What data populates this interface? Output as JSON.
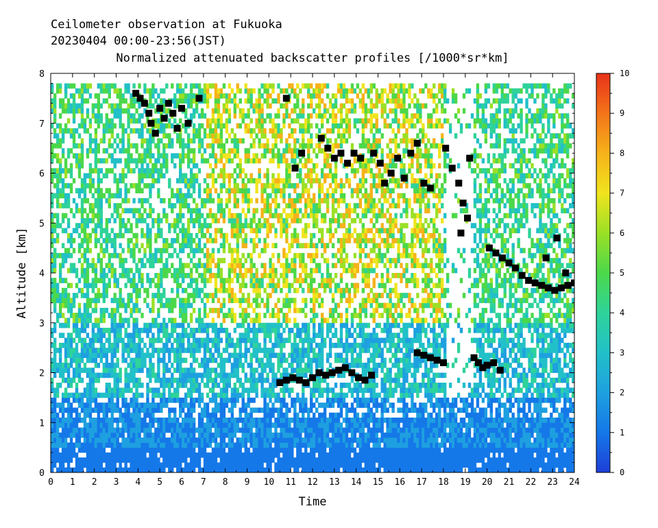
{
  "header": {
    "line1": "Ceilometer observation at Fukuoka",
    "line2": "20230404  00:00-23:56(JST)",
    "title": "Normalized attenuated backscatter profiles [/1000*sr*km]"
  },
  "chart_data": {
    "type": "heatmap",
    "title": "Normalized attenuated backscatter profiles [/1000*sr*km]",
    "xlabel": "Time",
    "ylabel": "Altitude [km]",
    "xlim": [
      0,
      24
    ],
    "ylim": [
      0,
      8
    ],
    "x_ticks": [
      "0",
      "1",
      "2",
      "3",
      "4",
      "5",
      "6",
      "7",
      "8",
      "9",
      "10",
      "11",
      "12",
      "13",
      "14",
      "15",
      "16",
      "17",
      "18",
      "19",
      "20",
      "21",
      "22",
      "23",
      "24"
    ],
    "y_ticks": [
      "0",
      "1",
      "2",
      "3",
      "4",
      "5",
      "6",
      "7",
      "8"
    ],
    "colorbar": {
      "range": [
        0,
        10
      ],
      "ticks": [
        "0",
        "1",
        "2",
        "3",
        "4",
        "5",
        "6",
        "7",
        "8",
        "9",
        "10"
      ],
      "colors": [
        "#1e3fd8",
        "#1578e8",
        "#1ea0e0",
        "#22c0c8",
        "#2ed39a",
        "#4cd84a",
        "#9be026",
        "#f0e41e",
        "#f6b21a",
        "#f4741a",
        "#e8321a"
      ]
    },
    "data_ceiling_km": 7.7,
    "cloud_base_color": "#000000",
    "cloud_base_points": [
      {
        "t": 3.9,
        "alt": 7.6
      },
      {
        "t": 4.1,
        "alt": 7.5
      },
      {
        "t": 4.3,
        "alt": 7.4
      },
      {
        "t": 4.5,
        "alt": 7.2
      },
      {
        "t": 4.6,
        "alt": 7.0
      },
      {
        "t": 4.8,
        "alt": 6.8
      },
      {
        "t": 5.0,
        "alt": 7.3
      },
      {
        "t": 5.2,
        "alt": 7.1
      },
      {
        "t": 5.4,
        "alt": 7.4
      },
      {
        "t": 5.6,
        "alt": 7.2
      },
      {
        "t": 5.8,
        "alt": 6.9
      },
      {
        "t": 6.0,
        "alt": 7.3
      },
      {
        "t": 6.3,
        "alt": 7.0
      },
      {
        "t": 6.8,
        "alt": 7.5
      },
      {
        "t": 10.8,
        "alt": 7.5
      },
      {
        "t": 11.2,
        "alt": 6.1
      },
      {
        "t": 11.5,
        "alt": 6.4
      },
      {
        "t": 12.4,
        "alt": 6.7
      },
      {
        "t": 12.7,
        "alt": 6.5
      },
      {
        "t": 13.0,
        "alt": 6.3
      },
      {
        "t": 13.3,
        "alt": 6.4
      },
      {
        "t": 13.6,
        "alt": 6.2
      },
      {
        "t": 13.9,
        "alt": 6.4
      },
      {
        "t": 14.2,
        "alt": 6.3
      },
      {
        "t": 14.8,
        "alt": 6.4
      },
      {
        "t": 15.1,
        "alt": 6.2
      },
      {
        "t": 15.3,
        "alt": 5.8
      },
      {
        "t": 15.6,
        "alt": 6.0
      },
      {
        "t": 15.9,
        "alt": 6.3
      },
      {
        "t": 16.2,
        "alt": 5.9
      },
      {
        "t": 16.5,
        "alt": 6.4
      },
      {
        "t": 16.8,
        "alt": 6.6
      },
      {
        "t": 17.1,
        "alt": 5.8
      },
      {
        "t": 17.4,
        "alt": 5.7
      },
      {
        "t": 18.1,
        "alt": 6.5
      },
      {
        "t": 18.4,
        "alt": 6.1
      },
      {
        "t": 18.7,
        "alt": 5.8
      },
      {
        "t": 18.9,
        "alt": 5.4
      },
      {
        "t": 19.1,
        "alt": 5.1
      },
      {
        "t": 19.2,
        "alt": 6.3
      },
      {
        "t": 18.8,
        "alt": 4.8
      },
      {
        "t": 20.1,
        "alt": 4.5
      },
      {
        "t": 20.4,
        "alt": 4.4
      },
      {
        "t": 20.7,
        "alt": 4.3
      },
      {
        "t": 21.0,
        "alt": 4.2
      },
      {
        "t": 21.3,
        "alt": 4.1
      },
      {
        "t": 21.6,
        "alt": 3.95
      },
      {
        "t": 21.9,
        "alt": 3.85
      },
      {
        "t": 22.2,
        "alt": 3.8
      },
      {
        "t": 22.5,
        "alt": 3.75
      },
      {
        "t": 22.8,
        "alt": 3.7
      },
      {
        "t": 23.1,
        "alt": 3.65
      },
      {
        "t": 23.4,
        "alt": 3.7
      },
      {
        "t": 23.7,
        "alt": 3.75
      },
      {
        "t": 24.0,
        "alt": 3.8
      },
      {
        "t": 22.7,
        "alt": 4.3
      },
      {
        "t": 23.2,
        "alt": 4.7
      },
      {
        "t": 23.6,
        "alt": 4.0
      },
      {
        "t": 10.5,
        "alt": 1.8
      },
      {
        "t": 10.8,
        "alt": 1.85
      },
      {
        "t": 11.1,
        "alt": 1.9
      },
      {
        "t": 11.4,
        "alt": 1.85
      },
      {
        "t": 11.7,
        "alt": 1.8
      },
      {
        "t": 12.0,
        "alt": 1.9
      },
      {
        "t": 12.3,
        "alt": 2.0
      },
      {
        "t": 12.6,
        "alt": 1.95
      },
      {
        "t": 12.9,
        "alt": 2.0
      },
      {
        "t": 13.2,
        "alt": 2.05
      },
      {
        "t": 13.5,
        "alt": 2.1
      },
      {
        "t": 13.8,
        "alt": 2.0
      },
      {
        "t": 14.1,
        "alt": 1.9
      },
      {
        "t": 14.4,
        "alt": 1.85
      },
      {
        "t": 14.7,
        "alt": 1.95
      },
      {
        "t": 16.8,
        "alt": 2.4
      },
      {
        "t": 17.1,
        "alt": 2.35
      },
      {
        "t": 17.4,
        "alt": 2.3
      },
      {
        "t": 17.7,
        "alt": 2.25
      },
      {
        "t": 18.0,
        "alt": 2.2
      },
      {
        "t": 19.4,
        "alt": 2.3
      },
      {
        "t": 19.6,
        "alt": 2.2
      },
      {
        "t": 19.8,
        "alt": 2.1
      },
      {
        "t": 20.0,
        "alt": 2.15
      },
      {
        "t": 20.3,
        "alt": 2.2
      },
      {
        "t": 20.6,
        "alt": 2.05
      }
    ]
  }
}
